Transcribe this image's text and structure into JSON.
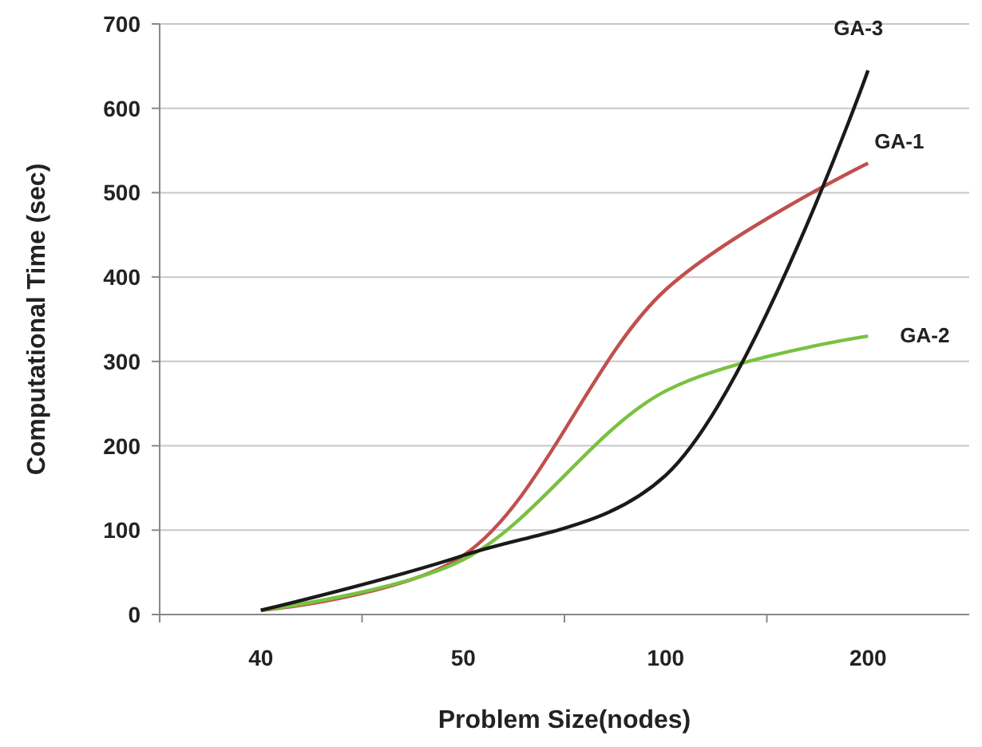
{
  "chart_data": {
    "type": "line",
    "xlabel": "Problem Size(nodes)",
    "ylabel": "Computational Time (sec)",
    "categories": [
      "40",
      "50",
      "100",
      "200"
    ],
    "ylim": [
      0,
      700
    ],
    "yticks": [
      0,
      100,
      200,
      300,
      400,
      500,
      600,
      700
    ],
    "grid": "y",
    "marker": "none",
    "line_style": "solid",
    "series": [
      {
        "name": "GA-1",
        "color": "#c0504d",
        "values": [
          5,
          70,
          385,
          535
        ]
      },
      {
        "name": "GA-2",
        "color": "#7ac142",
        "values": [
          5,
          65,
          265,
          330
        ]
      },
      {
        "name": "GA-3",
        "color": "#1a1a1a",
        "values": [
          5,
          70,
          165,
          645
        ]
      }
    ]
  }
}
